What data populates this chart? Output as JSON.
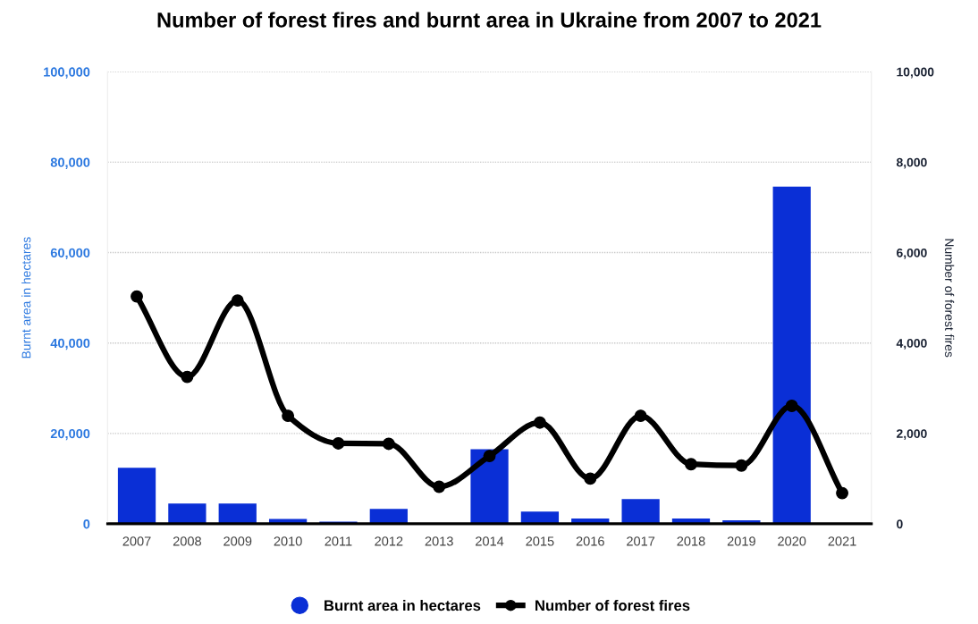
{
  "chart_data": {
    "type": "bar",
    "title": "Number of forest fires and burnt area in Ukraine from 2007 to 2021",
    "categories": [
      "2007",
      "2008",
      "2009",
      "2010",
      "2011",
      "2012",
      "2013",
      "2014",
      "2015",
      "2016",
      "2017",
      "2018",
      "2019",
      "2020",
      "2021"
    ],
    "ylabel": "Burnt area in hectares",
    "y2label": "Number of forest fires",
    "ylim": [
      0,
      100000
    ],
    "yticks": [
      0,
      {
        "value": 20000,
        "label": "20,000"
      },
      {
        "value": 40000,
        "label": "40,000"
      },
      {
        "value": 60000,
        "label": "60,000"
      },
      {
        "value": 80000,
        "label": "80,000"
      },
      {
        "value": 100000,
        "label": "100,000"
      }
    ],
    "y2lim": [
      0,
      10000
    ],
    "y2ticks": [
      0,
      {
        "value": 2000,
        "label": "2,000"
      },
      {
        "value": 4000,
        "label": "4,000"
      },
      {
        "value": 6000,
        "label": "6,000"
      },
      {
        "value": 8000,
        "label": "8,000"
      },
      {
        "value": 10000,
        "label": "10,000"
      }
    ],
    "series": [
      {
        "name": "Burnt area in hectares",
        "color": "#0a2fd6",
        "values": [
          12400,
          4500,
          4500,
          1100,
          500,
          3300,
          0,
          16500,
          2700,
          1200,
          5500,
          1200,
          800,
          74600,
          null
        ]
      },
      {
        "name": "Number of forest fires",
        "type": "line",
        "axis": "y2",
        "color": "#000000",
        "values": [
          5030,
          3250,
          4940,
          2390,
          1780,
          1770,
          820,
          1500,
          2240,
          1000,
          2390,
          1320,
          1290,
          2610,
          680
        ]
      }
    ],
    "marker": "circle",
    "grid": "y",
    "legend": "bottom"
  }
}
